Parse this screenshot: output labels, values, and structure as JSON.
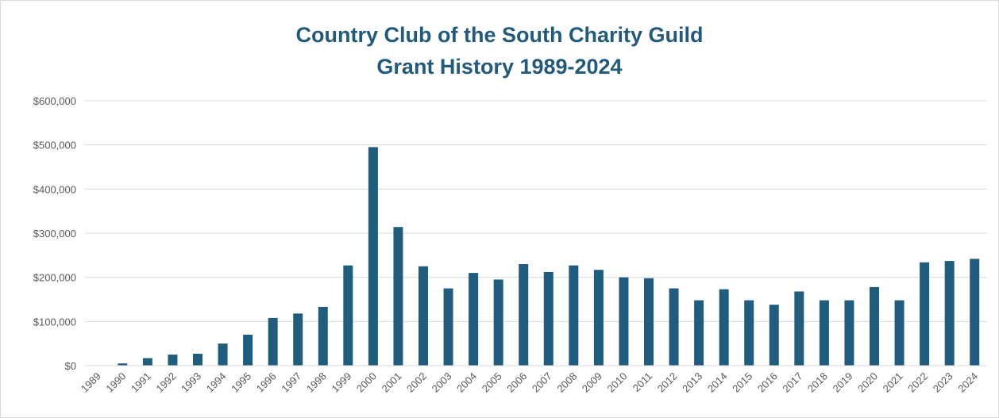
{
  "chart_data": {
    "type": "bar",
    "title": "Country Club of the South Charity Guild",
    "subtitle": "Grant History 1989-2024",
    "xlabel": "",
    "ylabel": "",
    "ylim": [
      0,
      600000
    ],
    "yticks": [
      0,
      100000,
      200000,
      300000,
      400000,
      500000,
      600000
    ],
    "ytick_labels": [
      "$0",
      "$100,000",
      "$200,000",
      "$300,000",
      "$400,000",
      "$500,000",
      "$600,000"
    ],
    "grid": true,
    "bar_color": "#1f5c7e",
    "categories": [
      "1989",
      "1990",
      "1991",
      "1992",
      "1993",
      "1994",
      "1995",
      "1996",
      "1997",
      "1998",
      "1999",
      "2000",
      "2001",
      "2002",
      "2003",
      "2004",
      "2005",
      "2006",
      "2007",
      "2008",
      "2009",
      "2010",
      "2011",
      "2012",
      "2013",
      "2014",
      "2015",
      "2016",
      "2017",
      "2018",
      "2019",
      "2020",
      "2021",
      "2022",
      "2023",
      "2024"
    ],
    "values": [
      0,
      5000,
      17000,
      25000,
      27000,
      50000,
      70000,
      108000,
      118000,
      133000,
      227000,
      495000,
      314000,
      225000,
      175000,
      210000,
      195000,
      230000,
      212000,
      227000,
      217000,
      200000,
      198000,
      175000,
      148000,
      173000,
      148000,
      138000,
      168000,
      148000,
      148000,
      178000,
      148000,
      234000,
      237000,
      242000
    ]
  }
}
